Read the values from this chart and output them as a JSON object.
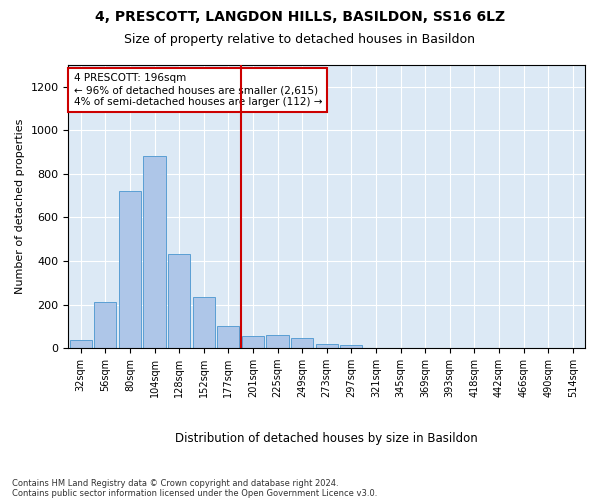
{
  "title": "4, PRESCOTT, LANGDON HILLS, BASILDON, SS16 6LZ",
  "subtitle": "Size of property relative to detached houses in Basildon",
  "xlabel": "Distribution of detached houses by size in Basildon",
  "ylabel": "Number of detached properties",
  "footer_line1": "Contains HM Land Registry data © Crown copyright and database right 2024.",
  "footer_line2": "Contains public sector information licensed under the Open Government Licence v3.0.",
  "annotation_line1": "4 PRESCOTT: 196sqm",
  "annotation_line2": "← 96% of detached houses are smaller (2,615)",
  "annotation_line3": "4% of semi-detached houses are larger (112) →",
  "property_line_x": 7,
  "bar_color": "#aec6e8",
  "bar_edge_color": "#5a9fd4",
  "line_color": "#cc0000",
  "background_color": "#dce9f5",
  "annotation_box_color": "#ffffff",
  "annotation_box_edge_color": "#cc0000",
  "categories": [
    "32sqm",
    "56sqm",
    "80sqm",
    "104sqm",
    "128sqm",
    "152sqm",
    "177sqm",
    "201sqm",
    "225sqm",
    "249sqm",
    "273sqm",
    "297sqm",
    "321sqm",
    "345sqm",
    "369sqm",
    "393sqm",
    "418sqm",
    "442sqm",
    "466sqm",
    "490sqm",
    "514sqm"
  ],
  "values": [
    35,
    210,
    720,
    880,
    430,
    235,
    100,
    55,
    60,
    45,
    20,
    12,
    0,
    0,
    0,
    0,
    0,
    0,
    0,
    0,
    0
  ],
  "ylim": [
    0,
    1300
  ],
  "yticks": [
    0,
    200,
    400,
    600,
    800,
    1000,
    1200
  ],
  "figsize": [
    6.0,
    5.0
  ],
  "dpi": 100
}
